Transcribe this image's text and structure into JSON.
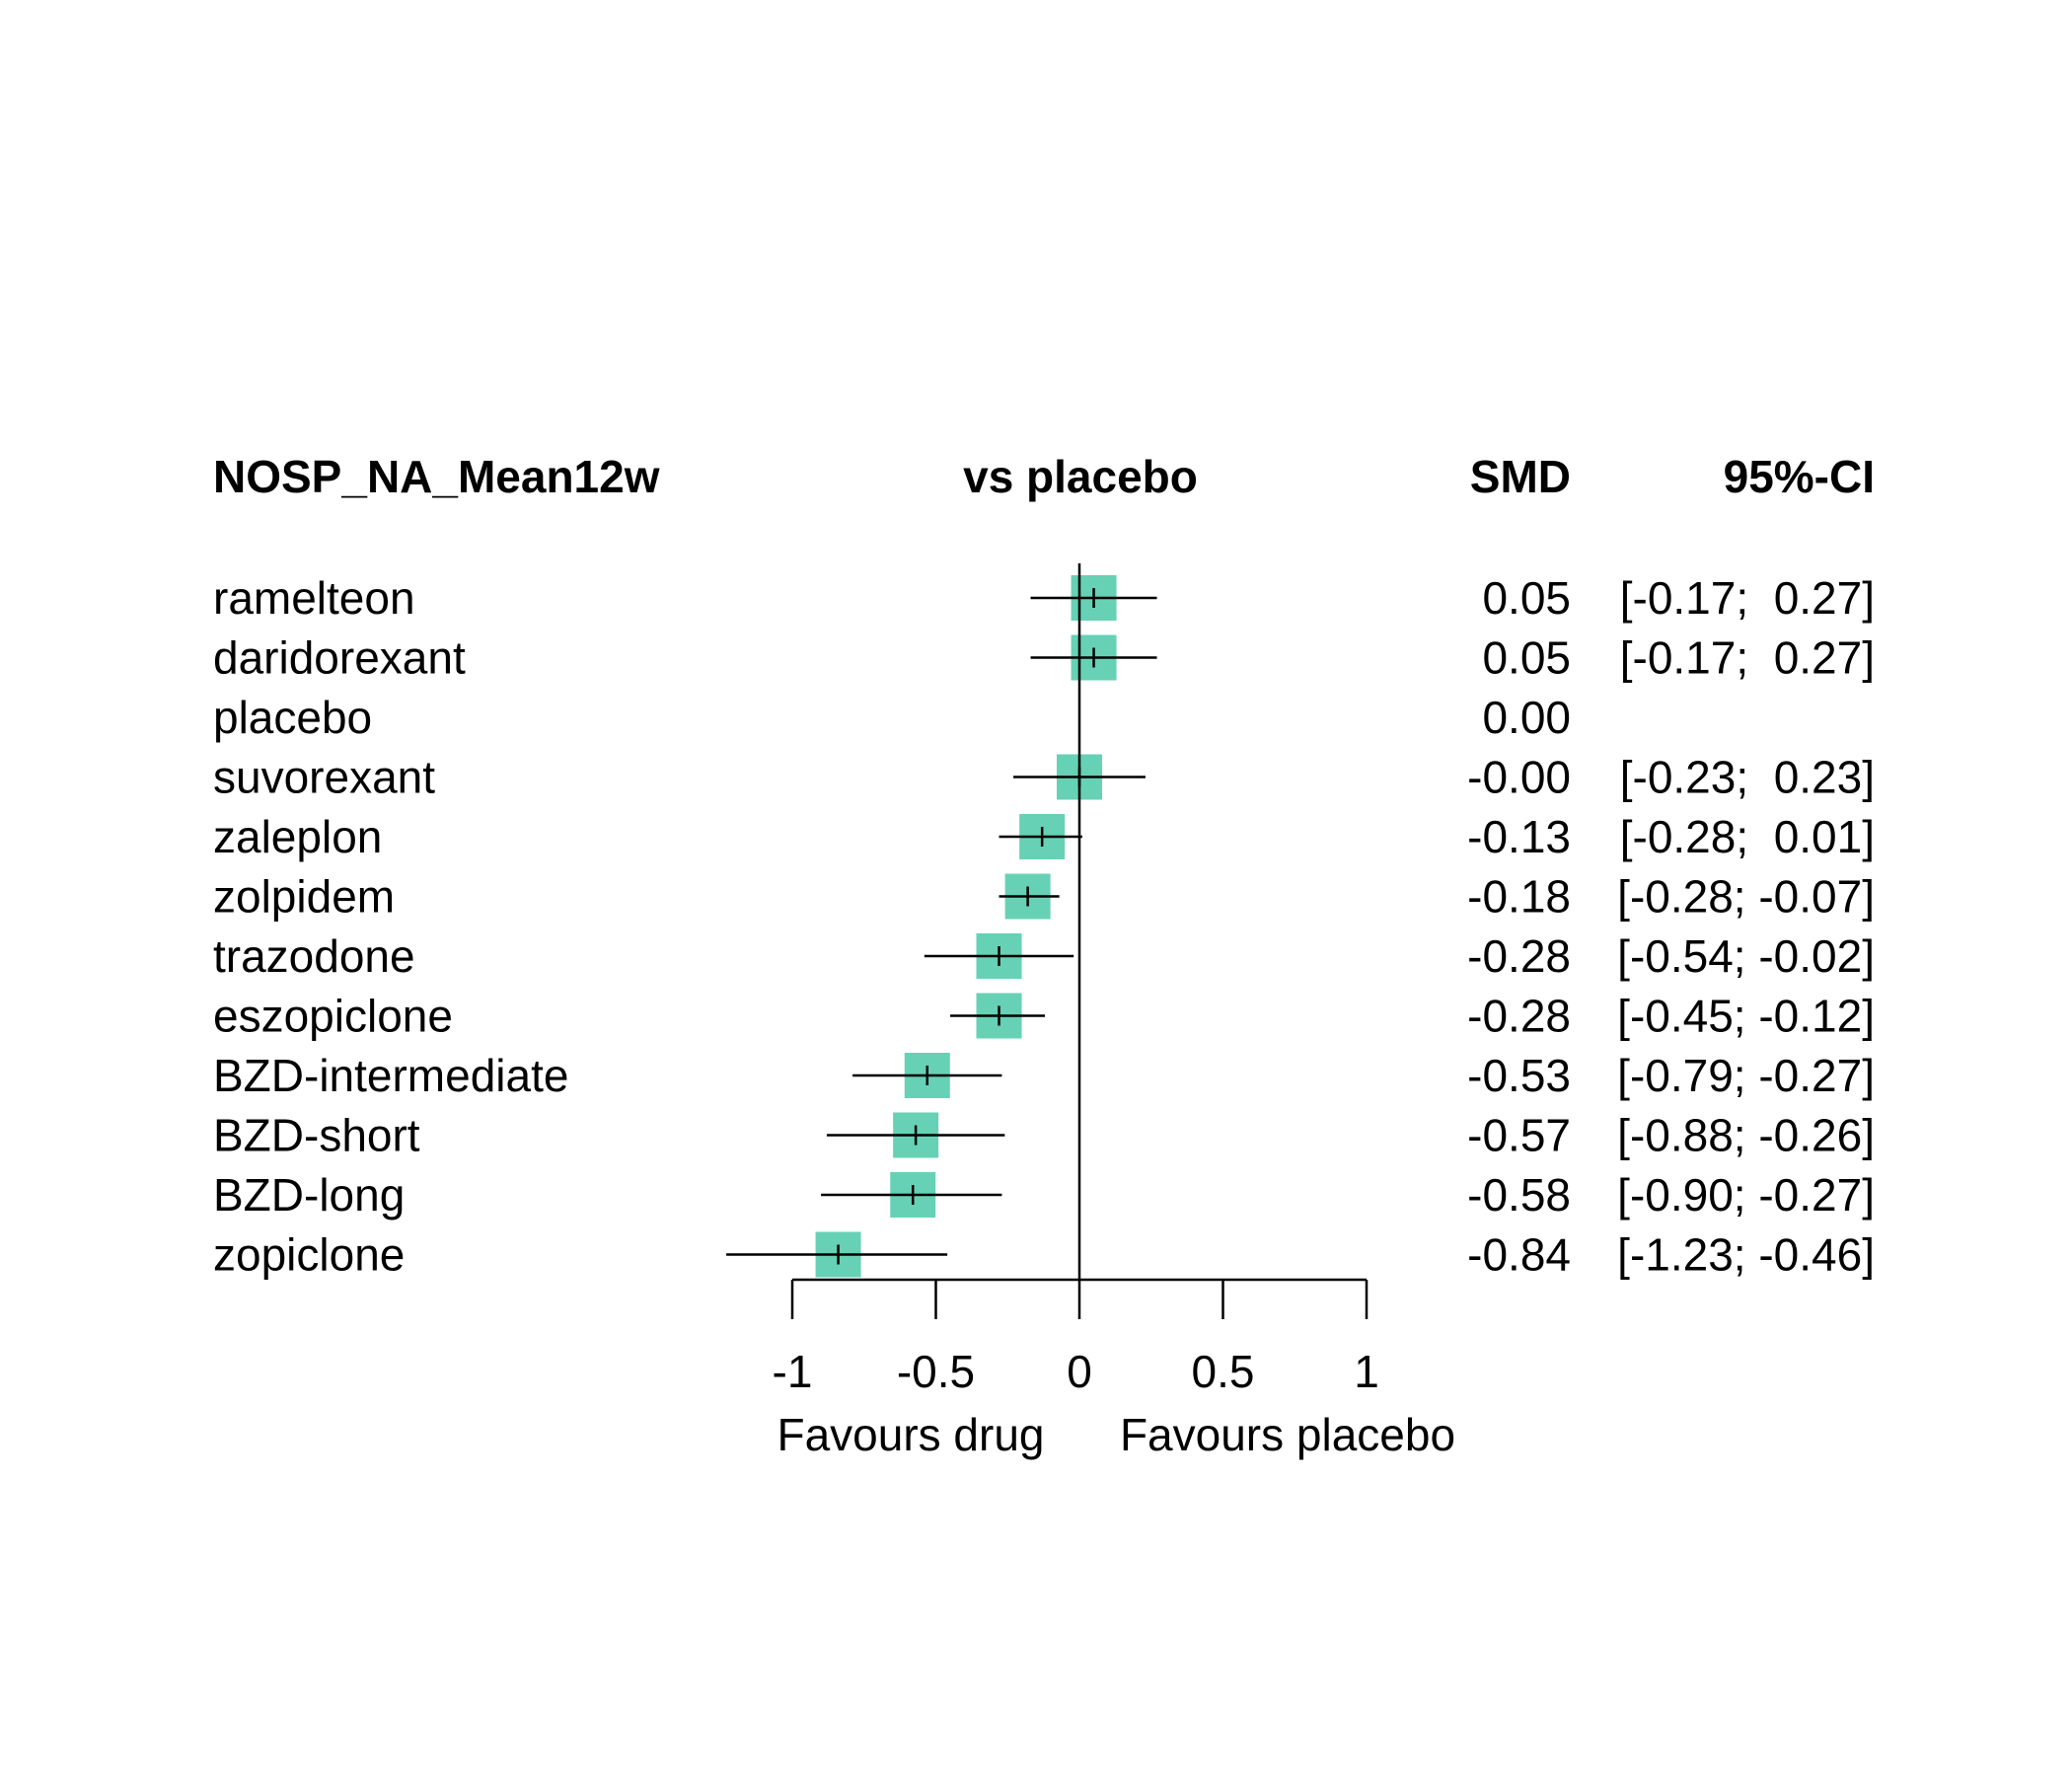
{
  "chart_data": {
    "type": "forest",
    "title": "NOSP_NA_Mean12w",
    "headers": {
      "comparison": "vs placebo",
      "estimate": "SMD",
      "ci": "95%-CI"
    },
    "xlim": [
      -1,
      1
    ],
    "xticks": [
      -1,
      -0.5,
      0,
      0.5,
      1
    ],
    "xtick_labels": [
      "-1",
      "-0.5",
      "0",
      "0.5",
      "1"
    ],
    "xlabel_left": "Favours drug",
    "xlabel_right": "Favours placebo",
    "marker_color": "#66D1B5",
    "rows": [
      {
        "name": "ramelteon",
        "smd": 0.05,
        "lower": -0.17,
        "upper": 0.27,
        "smd_text": "0.05",
        "ci_text": "[-0.17;  0.27]"
      },
      {
        "name": "daridorexant",
        "smd": 0.05,
        "lower": -0.17,
        "upper": 0.27,
        "smd_text": "0.05",
        "ci_text": "[-0.17;  0.27]"
      },
      {
        "name": "placebo",
        "smd": 0.0,
        "lower": null,
        "upper": null,
        "smd_text": "0.00",
        "ci_text": ""
      },
      {
        "name": "suvorexant",
        "smd": -0.0,
        "lower": -0.23,
        "upper": 0.23,
        "smd_text": "-0.00",
        "ci_text": "[-0.23;  0.23]"
      },
      {
        "name": "zaleplon",
        "smd": -0.13,
        "lower": -0.28,
        "upper": 0.01,
        "smd_text": "-0.13",
        "ci_text": "[-0.28;  0.01]"
      },
      {
        "name": "zolpidem",
        "smd": -0.18,
        "lower": -0.28,
        "upper": -0.07,
        "smd_text": "-0.18",
        "ci_text": "[-0.28; -0.07]"
      },
      {
        "name": "trazodone",
        "smd": -0.28,
        "lower": -0.54,
        "upper": -0.02,
        "smd_text": "-0.28",
        "ci_text": "[-0.54; -0.02]"
      },
      {
        "name": "eszopiclone",
        "smd": -0.28,
        "lower": -0.45,
        "upper": -0.12,
        "smd_text": "-0.28",
        "ci_text": "[-0.45; -0.12]"
      },
      {
        "name": "BZD-intermediate",
        "smd": -0.53,
        "lower": -0.79,
        "upper": -0.27,
        "smd_text": "-0.53",
        "ci_text": "[-0.79; -0.27]"
      },
      {
        "name": "BZD-short",
        "smd": -0.57,
        "lower": -0.88,
        "upper": -0.26,
        "smd_text": "-0.57",
        "ci_text": "[-0.88; -0.26]"
      },
      {
        "name": "BZD-long",
        "smd": -0.58,
        "lower": -0.9,
        "upper": -0.27,
        "smd_text": "-0.58",
        "ci_text": "[-0.90; -0.27]"
      },
      {
        "name": "zopiclone",
        "smd": -0.84,
        "lower": -1.23,
        "upper": -0.46,
        "smd_text": "-0.84",
        "ci_text": "[-1.23; -0.46]"
      }
    ]
  }
}
